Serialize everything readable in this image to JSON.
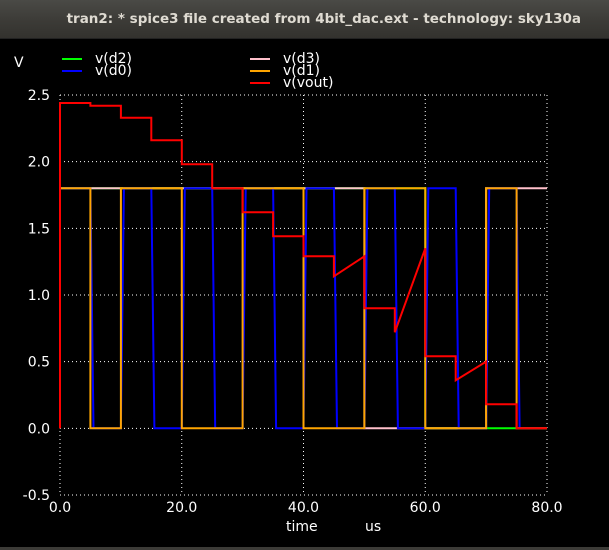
{
  "window": {
    "title": "tran2: * spice3 file created from 4bit_dac.ext - technology: sky130a"
  },
  "colors": {
    "background": "#000000",
    "grid": "#ffffff",
    "text": "#ffffff"
  },
  "chart_data": {
    "type": "line",
    "ylabel": "V",
    "xlabel_quantity": "time",
    "xlabel_unit": "us",
    "xlim": [
      0,
      80
    ],
    "ylim": [
      -0.5,
      2.5
    ],
    "x_ticks": [
      "0.0",
      "20.0",
      "40.0",
      "60.0",
      "80.0"
    ],
    "y_ticks": [
      "-0.5",
      "0.0",
      "0.5",
      "1.0",
      "1.5",
      "2.0",
      "2.5"
    ],
    "grid": true,
    "legend_placement": "top",
    "series": [
      {
        "name": "v(d2)",
        "color": "#00ff00",
        "x": [
          0,
          0,
          5.0,
          5.0,
          60.0,
          60.0,
          75.0,
          75.0,
          80.0
        ],
        "y": [
          0,
          1.8,
          1.8,
          1.8,
          1.8,
          0,
          0,
          0,
          0
        ]
      },
      {
        "name": "v(d3)",
        "color": "#ffc0cb",
        "x": [
          0,
          0,
          30.0,
          30.0,
          50.0,
          50.0,
          70.0,
          70.0,
          80.0
        ],
        "y": [
          0,
          1.8,
          1.8,
          1.8,
          1.8,
          0,
          0,
          1.8,
          1.8
        ]
      },
      {
        "name": "v(d0)",
        "color": "#0000ff",
        "x": [
          0,
          0,
          5.0,
          5.5,
          10.0,
          10.5,
          15.0,
          15.5,
          20.0,
          20.5,
          25.0,
          25.5,
          30.0,
          30.5,
          35.0,
          35.5,
          40.0,
          40.5,
          45.0,
          45.5,
          50.0,
          50.5,
          55.0,
          55.5,
          60.0,
          60.5,
          65.0,
          65.5,
          70.0,
          70.5,
          75.0,
          75.5,
          80.0
        ],
        "y": [
          0,
          1.8,
          1.8,
          0,
          0,
          1.8,
          1.8,
          0,
          0,
          1.8,
          1.8,
          0,
          0,
          1.8,
          1.8,
          0,
          0,
          1.8,
          1.8,
          0,
          0,
          1.8,
          1.8,
          0,
          0,
          1.8,
          1.8,
          0,
          0,
          1.8,
          1.8,
          0,
          0
        ]
      },
      {
        "name": "v(d1)",
        "color": "#ffa500",
        "x": [
          0,
          0,
          5.0,
          5.0,
          10.0,
          10.0,
          20.0,
          20.0,
          30.0,
          30.0,
          40.0,
          40.0,
          50.0,
          50.0,
          60.0,
          60.0,
          70.0,
          70.0,
          75.0,
          75.0,
          80.0
        ],
        "y": [
          0,
          1.8,
          1.8,
          0,
          0,
          1.8,
          1.8,
          0,
          0,
          1.8,
          1.8,
          0,
          0,
          1.8,
          1.8,
          0,
          0,
          1.8,
          1.8,
          0,
          0
        ]
      },
      {
        "name": "v(vout)",
        "color": "#ff0000",
        "x": [
          0,
          0,
          5,
          5,
          10,
          10,
          15,
          15,
          20,
          20,
          25,
          25,
          30,
          30,
          35,
          35,
          40,
          40,
          45,
          45,
          50,
          50,
          55,
          55,
          60,
          60,
          65,
          65,
          70,
          70,
          75,
          75,
          80
        ],
        "y": [
          0,
          2.44,
          2.44,
          2.42,
          2.42,
          2.33,
          2.33,
          2.16,
          2.16,
          1.98,
          1.98,
          1.8,
          1.8,
          1.62,
          1.62,
          1.44,
          1.44,
          1.29,
          1.29,
          1.14,
          1.29,
          0.9,
          0.9,
          0.72,
          1.35,
          0.54,
          0.54,
          0.36,
          0.5,
          0.18,
          0.18,
          0,
          0
        ]
      }
    ]
  }
}
